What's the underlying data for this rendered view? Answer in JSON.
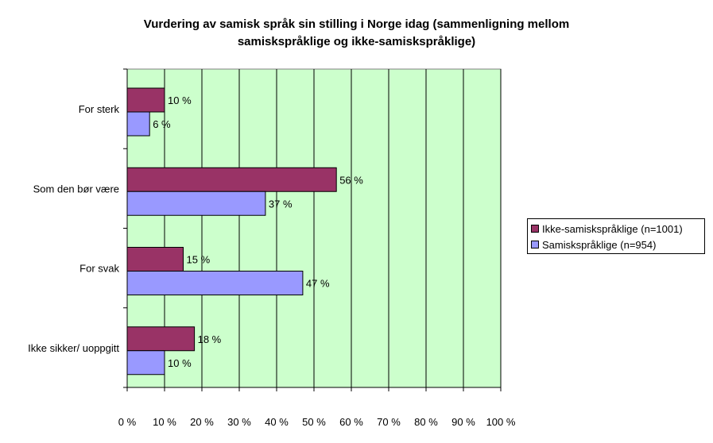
{
  "title_lines": [
    "Vurdering av samisk språk sin stilling i Norge idag (sammenligning mellom",
    "samiskspråklige og ikke-samiskspråklige)"
  ],
  "colors": {
    "plot_background": "#ccffcc",
    "gridline": "#000000",
    "series_1": "#993366",
    "series_2": "#9999ff"
  },
  "chart_data": {
    "type": "bar",
    "orientation": "horizontal",
    "categories": [
      "For sterk",
      "Som den bør være",
      "For svak",
      "Ikke sikker/ uoppgitt"
    ],
    "series": [
      {
        "name": "Ikke-samiskspråklige (n=1001)",
        "values": [
          10,
          56,
          15,
          18
        ],
        "labels": [
          "10 %",
          "56 %",
          "15 %",
          "18 %"
        ]
      },
      {
        "name": "Samiskspråklige (n=954)",
        "values": [
          6,
          37,
          47,
          10
        ],
        "labels": [
          "6 %",
          "37 %",
          "47 %",
          "10 %"
        ]
      }
    ],
    "xlim": [
      0,
      100
    ],
    "x_ticks": [
      "0 %",
      "10 %",
      "20 %",
      "30 %",
      "40 %",
      "50 %",
      "60 %",
      "70 %",
      "80 %",
      "90 %",
      "100 %"
    ],
    "grid": true,
    "legend_position": "right"
  }
}
